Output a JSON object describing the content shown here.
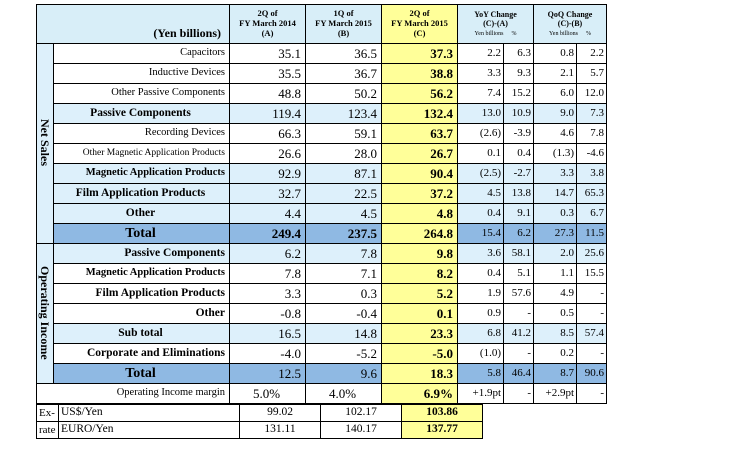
{
  "header": {
    "unit_label": "(Yen billions)",
    "col_a": [
      "2Q of",
      "FY March 2014",
      "(A)"
    ],
    "col_b": [
      "1Q of",
      "FY March 2015",
      "(B)"
    ],
    "col_c": [
      "2Q of",
      "FY March 2015",
      "(C)"
    ],
    "yoy": [
      "YoY Change",
      "(C)-(A)"
    ],
    "qoq": [
      "QoQ Change",
      "(C)-(B)"
    ],
    "sub_yen": "Yen billions",
    "sub_pct": "%"
  },
  "net_sales": {
    "section_label": "Net Sales",
    "rows": [
      {
        "label": "Capacitors",
        "a": "35.1",
        "b": "36.5",
        "c": "37.3",
        "yoy_yen": "2.2",
        "yoy_pct": "6.3",
        "qoq_yen": "0.8",
        "qoq_pct": "2.2"
      },
      {
        "label": "Inductive Devices",
        "a": "35.5",
        "b": "36.7",
        "c": "38.8",
        "yoy_yen": "3.3",
        "yoy_pct": "9.3",
        "qoq_yen": "2.1",
        "qoq_pct": "5.7"
      },
      {
        "label": "Other Passive Components",
        "a": "48.8",
        "b": "50.2",
        "c": "56.2",
        "yoy_yen": "7.4",
        "yoy_pct": "15.2",
        "qoq_yen": "6.0",
        "qoq_pct": "12.0"
      },
      {
        "label": "Passive Components",
        "a": "119.4",
        "b": "123.4",
        "c": "132.4",
        "yoy_yen": "13.0",
        "yoy_pct": "10.9",
        "qoq_yen": "9.0",
        "qoq_pct": "7.3"
      },
      {
        "label": "Recording Devices",
        "a": "66.3",
        "b": "59.1",
        "c": "63.7",
        "yoy_yen": "(2.6)",
        "yoy_pct": "-3.9",
        "qoq_yen": "4.6",
        "qoq_pct": "7.8"
      },
      {
        "label": "Other Magnetic Application Products",
        "a": "26.6",
        "b": "28.0",
        "c": "26.7",
        "yoy_yen": "0.1",
        "yoy_pct": "0.4",
        "qoq_yen": "(1.3)",
        "qoq_pct": "-4.6"
      },
      {
        "label": "Magnetic Application Products",
        "a": "92.9",
        "b": "87.1",
        "c": "90.4",
        "yoy_yen": "(2.5)",
        "yoy_pct": "-2.7",
        "qoq_yen": "3.3",
        "qoq_pct": "3.8"
      },
      {
        "label": "Film Application Products",
        "a": "32.7",
        "b": "22.5",
        "c": "37.2",
        "yoy_yen": "4.5",
        "yoy_pct": "13.8",
        "qoq_yen": "14.7",
        "qoq_pct": "65.3"
      },
      {
        "label": "Other",
        "a": "4.4",
        "b": "4.5",
        "c": "4.8",
        "yoy_yen": "0.4",
        "yoy_pct": "9.1",
        "qoq_yen": "0.3",
        "qoq_pct": "6.7"
      },
      {
        "label": "Total",
        "a": "249.4",
        "b": "237.5",
        "c": "264.8",
        "yoy_yen": "15.4",
        "yoy_pct": "6.2",
        "qoq_yen": "27.3",
        "qoq_pct": "11.5"
      }
    ]
  },
  "operating_income": {
    "section_label": "Operating Income",
    "rows": [
      {
        "label": "Passive Components",
        "a": "6.2",
        "b": "7.8",
        "c": "9.8",
        "yoy_yen": "3.6",
        "yoy_pct": "58.1",
        "qoq_yen": "2.0",
        "qoq_pct": "25.6"
      },
      {
        "label": "Magnetic Application Products",
        "a": "7.8",
        "b": "7.1",
        "c": "8.2",
        "yoy_yen": "0.4",
        "yoy_pct": "5.1",
        "qoq_yen": "1.1",
        "qoq_pct": "15.5"
      },
      {
        "label": "Film Application Products",
        "a": "3.3",
        "b": "0.3",
        "c": "5.2",
        "yoy_yen": "1.9",
        "yoy_pct": "57.6",
        "qoq_yen": "4.9",
        "qoq_pct": "-"
      },
      {
        "label": "Other",
        "a": "-0.8",
        "b": "-0.4",
        "c": "0.1",
        "yoy_yen": "0.9",
        "yoy_pct": "-",
        "qoq_yen": "0.5",
        "qoq_pct": "-"
      },
      {
        "label": "Sub total",
        "a": "16.5",
        "b": "14.8",
        "c": "23.3",
        "yoy_yen": "6.8",
        "yoy_pct": "41.2",
        "qoq_yen": "8.5",
        "qoq_pct": "57.4"
      },
      {
        "label": "Corporate and Eliminations",
        "a": "-4.0",
        "b": "-5.2",
        "c": "-5.0",
        "yoy_yen": "(1.0)",
        "yoy_pct": "-",
        "qoq_yen": "0.2",
        "qoq_pct": "-"
      },
      {
        "label": "Total",
        "a": "12.5",
        "b": "9.6",
        "c": "18.3",
        "yoy_yen": "5.8",
        "yoy_pct": "46.4",
        "qoq_yen": "8.7",
        "qoq_pct": "90.6"
      }
    ],
    "margin": {
      "label": "Operating Income margin",
      "a": "5.0%",
      "b": "4.0%",
      "c": "6.9%",
      "yoy_yen": "+1.9pt",
      "yoy_pct": "-",
      "qoq_yen": "+2.9pt",
      "qoq_pct": "-"
    }
  },
  "exchange_rate": {
    "label_top": "Ex-",
    "label_bottom": "rate",
    "rows": [
      {
        "label": "US$/Yen",
        "a": "99.02",
        "b": "102.17",
        "c": "103.86"
      },
      {
        "label": "EURO/Yen",
        "a": "131.11",
        "b": "140.17",
        "c": "137.77"
      }
    ]
  },
  "colors": {
    "highlight_c": "#ffff99",
    "subtotal_bg": "#ddf0fb",
    "total_bg": "#8fb9e3",
    "header_bg": "#d8eef8"
  }
}
